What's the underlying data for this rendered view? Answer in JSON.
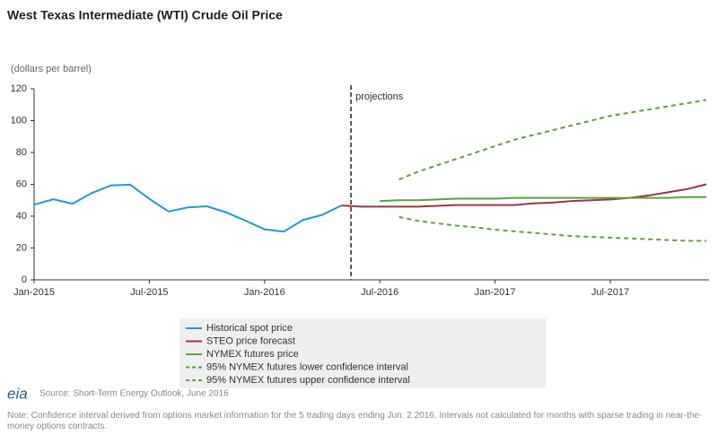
{
  "chart_data": {
    "type": "line",
    "title": "West Texas Intermediate (WTI) Crude Oil Price",
    "y_label": "(dollars per barrel)",
    "annotation": "projections",
    "source": "Source: Short-Term Energy Outlook, June 2016",
    "note": "Note: Confidence interval derived from options market information for the 5 trading days ending Jun. 2 2016. Intervals not calculated for months with sparse trading in near-the-money options contracts.",
    "logo": "eia",
    "categories": [
      "Jan-2015",
      null,
      null,
      null,
      null,
      null,
      "Jul-2015",
      null,
      null,
      null,
      null,
      null,
      "Jan-2016",
      null,
      null,
      null,
      null,
      null,
      "Jul-2016",
      null,
      null,
      null,
      null,
      null,
      "Jan-2017",
      null,
      null,
      null,
      null,
      null,
      "Jul-2017",
      null,
      null,
      null,
      null,
      null
    ],
    "ylim": [
      0,
      120
    ],
    "yticks": [
      0,
      20,
      40,
      60,
      80,
      100,
      120
    ],
    "grid": false,
    "series": [
      {
        "name": "Historical spot price",
        "color": "#1f9bd5",
        "dashed": false,
        "values": [
          47.2,
          50.6,
          47.8,
          54.5,
          59.3,
          59.8,
          50.9,
          42.9,
          45.5,
          46.2,
          42.4,
          37.2,
          31.7,
          30.3,
          37.6,
          40.8,
          46.7,
          null,
          null,
          null,
          null,
          null,
          null,
          null,
          null,
          null,
          null,
          null,
          null,
          null,
          null,
          null,
          null,
          null,
          null,
          null
        ]
      },
      {
        "name": "STEO price forecast",
        "color": "#a33340",
        "dashed": false,
        "values": [
          null,
          null,
          null,
          null,
          null,
          null,
          null,
          null,
          null,
          null,
          null,
          null,
          null,
          null,
          null,
          null,
          46.7,
          46,
          46,
          46,
          46,
          46.5,
          47,
          47,
          47,
          47,
          48,
          48.5,
          49.5,
          50,
          50.5,
          51.5,
          53,
          55,
          57,
          60
        ]
      },
      {
        "name": "NYMEX futures price",
        "color": "#5ba33a",
        "dashed": false,
        "values": [
          null,
          null,
          null,
          null,
          null,
          null,
          null,
          null,
          null,
          null,
          null,
          null,
          null,
          null,
          null,
          null,
          null,
          null,
          49.5,
          50,
          50,
          50.5,
          51,
          51,
          51,
          51.5,
          51.5,
          51.5,
          51.5,
          51.5,
          51.5,
          51.5,
          51.5,
          51.5,
          52,
          52
        ]
      },
      {
        "name": "95% NYMEX futures lower confidence interval",
        "color": "#5ba33a",
        "dashed": true,
        "values": [
          null,
          null,
          null,
          null,
          null,
          null,
          null,
          null,
          null,
          null,
          null,
          null,
          null,
          null,
          null,
          null,
          null,
          null,
          null,
          39.5,
          37,
          35.5,
          34,
          33,
          31.5,
          30.5,
          29.5,
          28.5,
          27.5,
          27,
          26.5,
          26,
          25.5,
          25,
          24.5,
          24.5
        ]
      },
      {
        "name": "95% NYMEX futures upper confidence interval",
        "color": "#5ba33a",
        "dashed": true,
        "values": [
          null,
          null,
          null,
          null,
          null,
          null,
          null,
          null,
          null,
          null,
          null,
          null,
          null,
          null,
          null,
          null,
          null,
          null,
          null,
          63,
          68,
          72,
          76,
          80,
          84,
          88,
          91,
          94,
          97,
          100,
          103,
          105,
          107,
          109,
          111,
          113
        ]
      }
    ]
  }
}
